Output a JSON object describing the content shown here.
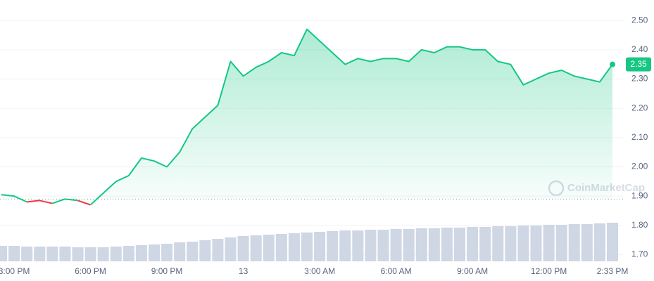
{
  "chart_data": {
    "type": "line",
    "categories": [
      null,
      "3:00 PM",
      null,
      null,
      null,
      null,
      null,
      "6:00 PM",
      null,
      null,
      null,
      null,
      null,
      "9:00 PM",
      null,
      null,
      null,
      null,
      null,
      "13",
      null,
      null,
      null,
      null,
      null,
      "3:00 AM",
      null,
      null,
      null,
      null,
      null,
      "6:00 AM",
      null,
      null,
      null,
      null,
      null,
      "9:00 AM",
      null,
      null,
      null,
      null,
      null,
      "12:00 PM",
      null,
      null,
      null,
      null,
      "2:33 PM"
    ],
    "series": [
      {
        "color": "#16c784",
        "below_color": "#ea3943",
        "values": [
          1.905,
          1.9,
          1.88,
          1.885,
          1.875,
          1.89,
          1.885,
          1.87,
          1.91,
          1.95,
          1.97,
          2.03,
          2.02,
          2.0,
          2.05,
          2.13,
          2.17,
          2.21,
          2.36,
          2.31,
          2.34,
          2.36,
          2.39,
          2.38,
          2.47,
          2.43,
          2.39,
          2.35,
          2.37,
          2.36,
          2.37,
          2.37,
          2.36,
          2.4,
          2.39,
          2.41,
          2.41,
          2.4,
          2.4,
          2.36,
          2.35,
          2.28,
          2.3,
          2.32,
          2.33,
          2.31,
          2.3,
          2.29,
          2.35
        ]
      }
    ],
    "volume": {
      "color": "#cfd6e4",
      "values": [
        22,
        22,
        21,
        21,
        21,
        21,
        20,
        20,
        20,
        21,
        22,
        23,
        24,
        25,
        27,
        28,
        30,
        32,
        34,
        36,
        37,
        38,
        39,
        40,
        41,
        42,
        43,
        44,
        44,
        45,
        45,
        46,
        46,
        47,
        47,
        48,
        48,
        49,
        49,
        50,
        50,
        51,
        51,
        52,
        52,
        53,
        53,
        54,
        55
      ]
    },
    "baseline": 1.89,
    "ylim": [
      1.67,
      2.57
    ],
    "yticks": [
      {
        "value": 1.7,
        "label": "1.70"
      },
      {
        "value": 1.8,
        "label": "1.80"
      },
      {
        "value": 1.9,
        "label": "1.90"
      },
      {
        "value": 2.0,
        "label": "2.00"
      },
      {
        "value": 2.1,
        "label": "2.10"
      },
      {
        "value": 2.2,
        "label": "2.20"
      },
      {
        "value": 2.3,
        "label": "2.30"
      },
      {
        "value": 2.4,
        "label": "2.40"
      },
      {
        "value": 2.5,
        "label": "2.50"
      }
    ],
    "grid": true,
    "watermark": "CoinMarketCap"
  }
}
